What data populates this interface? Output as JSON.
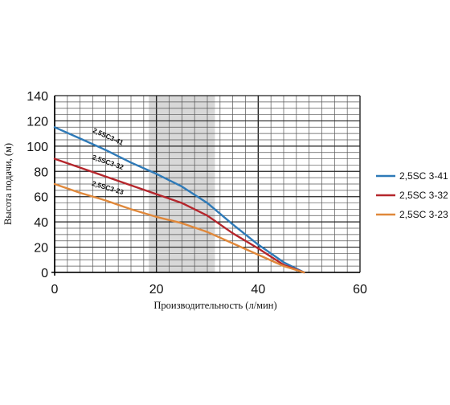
{
  "chart_data": {
    "type": "line",
    "xlabel": "Производительность (л/мин)",
    "ylabel": "Высота подачи, (м)",
    "xlim": [
      0,
      60
    ],
    "ylim": [
      0,
      140
    ],
    "x_ticks": [
      0,
      20,
      40,
      60
    ],
    "y_ticks": [
      0,
      20,
      40,
      60,
      80,
      100,
      120,
      140
    ],
    "grid": true,
    "legend_position": "right",
    "highlight_band": [
      18.5,
      31.5
    ],
    "series": [
      {
        "name": "2,5SC 3-41",
        "curve_label": "2,5SC3-41",
        "color": "#2e7ab8",
        "x": [
          0,
          5,
          10,
          15,
          20,
          25,
          30,
          35,
          40,
          45,
          49
        ],
        "y": [
          115,
          106,
          97,
          87,
          78,
          68,
          55,
          38,
          22,
          8,
          0
        ]
      },
      {
        "name": "2,5SC 3-32",
        "curve_label": "2,5SC3-32",
        "color": "#b5262c",
        "x": [
          0,
          5,
          10,
          15,
          20,
          25,
          30,
          35,
          40,
          45,
          49
        ],
        "y": [
          90,
          83,
          76,
          69,
          62,
          55,
          45,
          31,
          19,
          6,
          0
        ]
      },
      {
        "name": "2,5SC 3-23",
        "curve_label": "2,5SC3-23",
        "color": "#e0883a",
        "x": [
          0,
          5,
          10,
          15,
          20,
          25,
          30,
          35,
          40,
          45,
          49
        ],
        "y": [
          70,
          63,
          57,
          50,
          44,
          39,
          32,
          23,
          14,
          5,
          0
        ]
      }
    ]
  }
}
